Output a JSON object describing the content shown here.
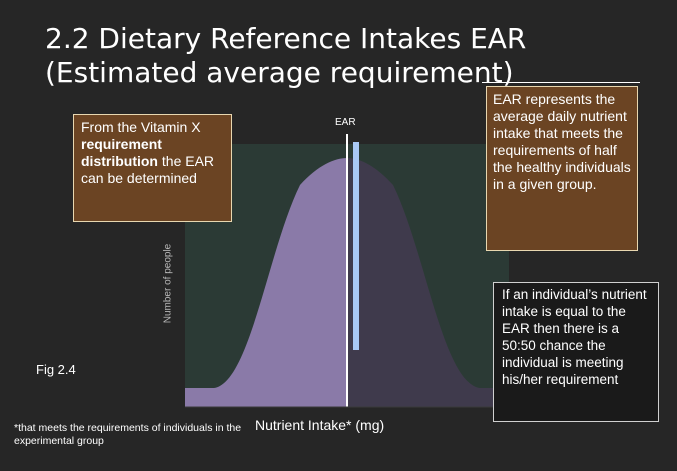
{
  "slide": {
    "title_line1": "2.2 Dietary Reference Intakes EAR",
    "title_line2": "(Estimated average requirement)"
  },
  "diagram": {
    "ear_label": "EAR",
    "y_axis_label": "Number of people",
    "x_axis_label": "Nutrient Intake* (mg)",
    "fig_label": "Fig 2.4",
    "footnote": "*that meets the requirements of individuals in the experimental group"
  },
  "callouts": {
    "left_pre": "From the Vitamin X ",
    "left_bold": "requirement distribution",
    "left_post": " the EAR can be determined",
    "right": "EAR represents the average daily nutrient intake that meets the requirements of half the healthy individuals in a given group.",
    "bottom_right": "If an individual’s nutrient intake is equal to the EAR then there is a 50:50 chance the individual is meeting his/her requirement"
  },
  "colors": {
    "background": "#262626",
    "plot_area": "#2b3a35",
    "curve_left_fill": "#8a7aa8",
    "curve_right_fill": "#3f3a4c",
    "ear_line": "#ffffff",
    "ear_bar": "#a9c8f5",
    "callout_brown": "#6b4423"
  }
}
